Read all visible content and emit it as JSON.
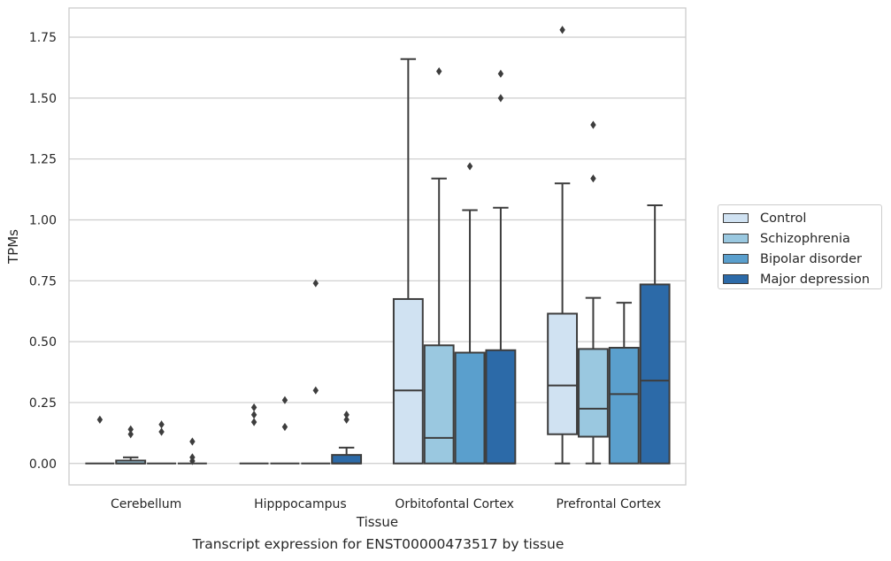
{
  "chart_data": {
    "type": "boxplot",
    "caption": "Transcript expression for ENST00000473517 by tissue",
    "xlabel": "Tissue",
    "ylabel": "TPMs",
    "ylim": [
      -0.088,
      1.87
    ],
    "yticks": [
      "0.00",
      "0.25",
      "0.50",
      "0.75",
      "1.00",
      "1.25",
      "1.50",
      "1.75"
    ],
    "grid": true,
    "legend_position": "right",
    "categories": [
      "Cerebellum",
      "Hipppocampus",
      "Orbitofontal Cortex",
      "Prefrontal Cortex"
    ],
    "series": [
      {
        "name": "Control",
        "color": "#d0e2f2",
        "boxes": [
          {
            "q1": 0,
            "median": 0,
            "q3": 0,
            "whislo": 0,
            "whishi": 0,
            "fliers": [
              0.18
            ]
          },
          {
            "q1": 0,
            "median": 0,
            "q3": 0,
            "whislo": 0,
            "whishi": 0,
            "fliers": [
              0.17,
              0.2,
              0.23
            ]
          },
          {
            "q1": 0,
            "median": 0.3,
            "q3": 0.675,
            "whislo": 0,
            "whishi": 1.66,
            "fliers": []
          },
          {
            "q1": 0.12,
            "median": 0.32,
            "q3": 0.615,
            "whislo": 0,
            "whishi": 1.15,
            "fliers": [
              1.78
            ]
          }
        ]
      },
      {
        "name": "Schizophrenia",
        "color": "#9ac8e0",
        "boxes": [
          {
            "q1": 0,
            "median": 0,
            "q3": 0.012,
            "whislo": 0,
            "whishi": 0.025,
            "fliers": [
              0.12,
              0.14
            ]
          },
          {
            "q1": 0,
            "median": 0,
            "q3": 0,
            "whislo": 0,
            "whishi": 0,
            "fliers": [
              0.15,
              0.26
            ]
          },
          {
            "q1": 0,
            "median": 0.105,
            "q3": 0.485,
            "whislo": 0,
            "whishi": 1.17,
            "fliers": [
              1.61
            ]
          },
          {
            "q1": 0.11,
            "median": 0.225,
            "q3": 0.47,
            "whislo": 0,
            "whishi": 0.68,
            "fliers": [
              1.17,
              1.39
            ]
          }
        ]
      },
      {
        "name": "Bipolar disorder",
        "color": "#5a9fcd",
        "boxes": [
          {
            "q1": 0,
            "median": 0,
            "q3": 0,
            "whislo": 0,
            "whishi": 0,
            "fliers": [
              0.13,
              0.16
            ]
          },
          {
            "q1": 0,
            "median": 0,
            "q3": 0,
            "whislo": 0,
            "whishi": 0,
            "fliers": [
              0.3,
              0.74
            ]
          },
          {
            "q1": 0,
            "median": 0,
            "q3": 0.455,
            "whislo": 0,
            "whishi": 1.04,
            "fliers": [
              1.22
            ]
          },
          {
            "q1": 0,
            "median": 0.285,
            "q3": 0.475,
            "whislo": 0,
            "whishi": 0.66,
            "fliers": []
          }
        ]
      },
      {
        "name": "Major depression",
        "color": "#2c6aa8",
        "boxes": [
          {
            "q1": 0,
            "median": 0,
            "q3": 0,
            "whislo": 0,
            "whishi": 0,
            "fliers": [
              0.01,
              0.025,
              0.09
            ]
          },
          {
            "q1": 0,
            "median": 0,
            "q3": 0.035,
            "whislo": 0,
            "whishi": 0.065,
            "fliers": [
              0.18,
              0.2
            ]
          },
          {
            "q1": 0,
            "median": 0,
            "q3": 0.465,
            "whislo": 0,
            "whishi": 1.05,
            "fliers": [
              1.5,
              1.6
            ]
          },
          {
            "q1": 0,
            "median": 0.34,
            "q3": 0.735,
            "whislo": 0,
            "whishi": 1.06,
            "fliers": []
          }
        ]
      }
    ]
  }
}
